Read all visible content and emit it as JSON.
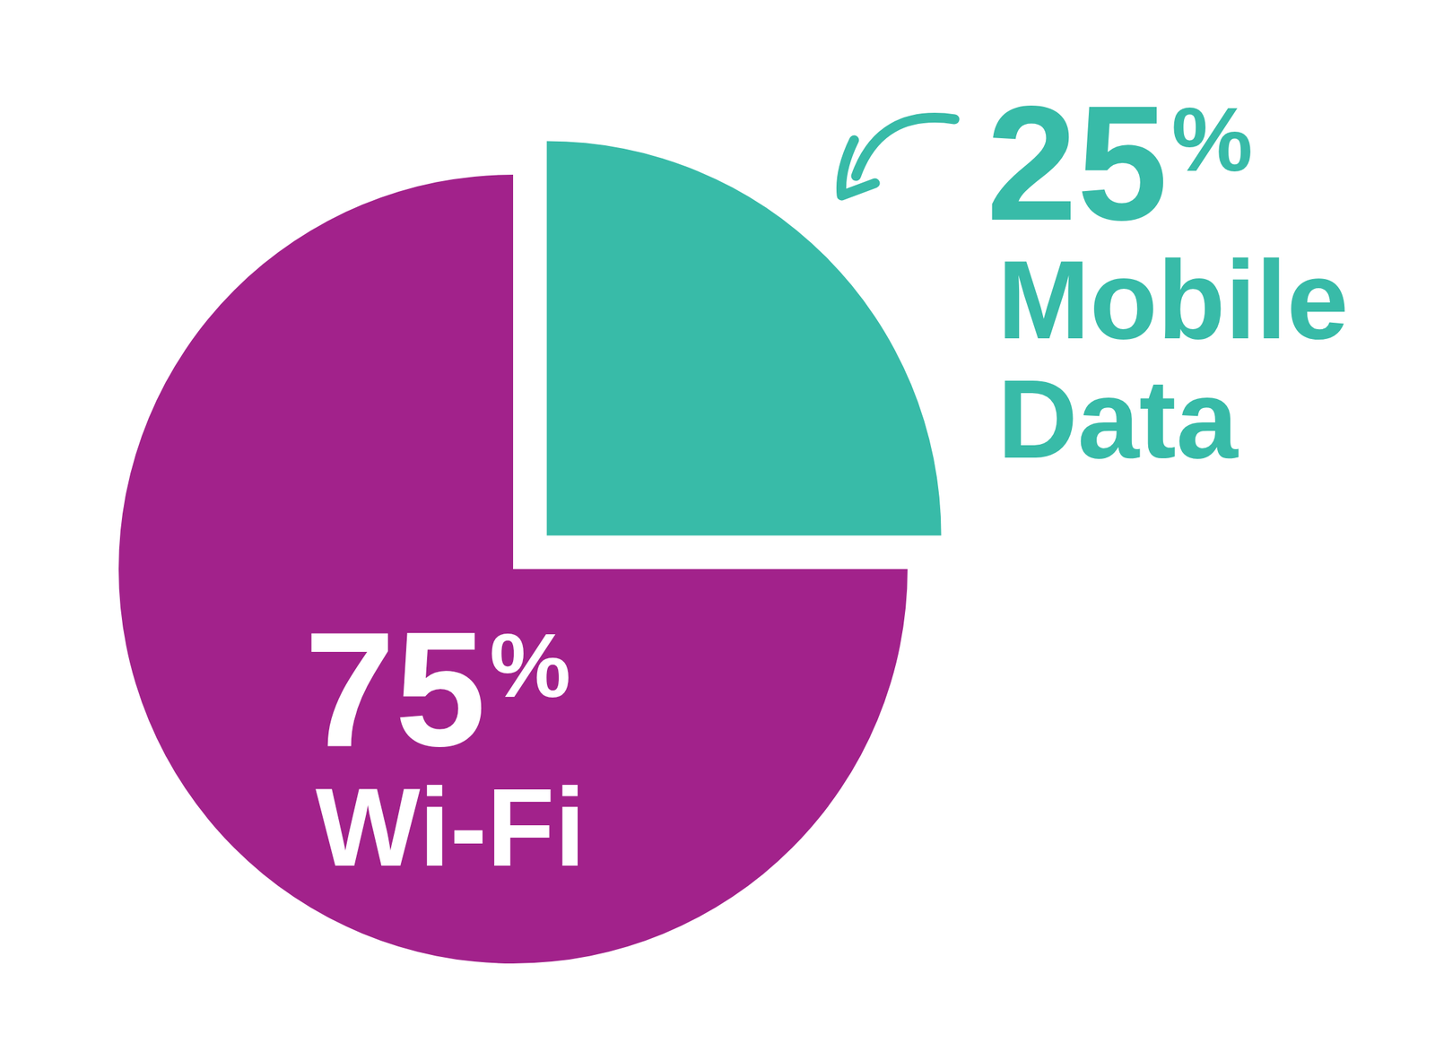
{
  "chart_data": {
    "type": "pie",
    "categories": [
      "Mobile Data",
      "Wi-Fi"
    ],
    "values": [
      25,
      75
    ],
    "value_labels": [
      "25%",
      "75%"
    ],
    "colors": [
      "#38bba8",
      "#a2228b"
    ],
    "data_labels": true
  }
}
